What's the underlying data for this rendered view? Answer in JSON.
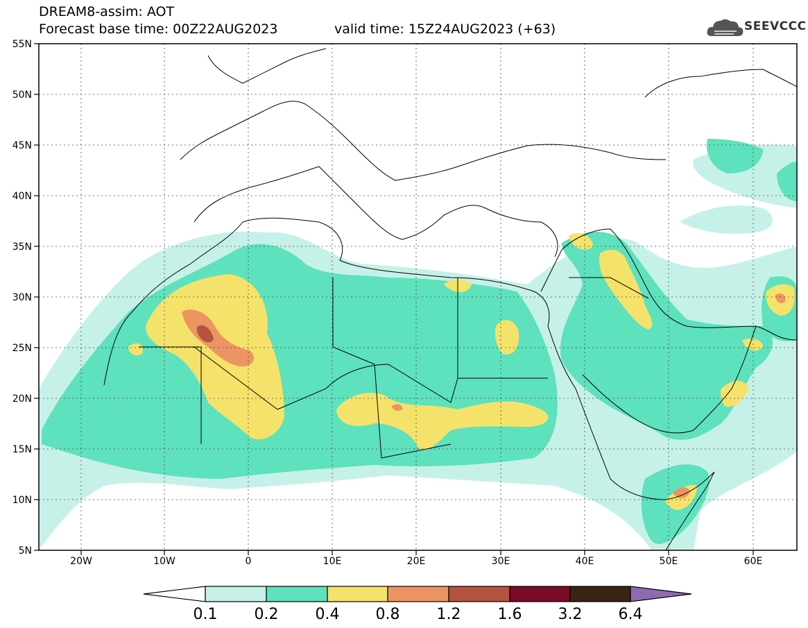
{
  "header": {
    "model_product": "DREAM8-assim: AOT",
    "base_time": "Forecast base time: 00Z22AUG2023",
    "valid_time": "valid time: 15Z24AUG2023 (+63)"
  },
  "logo": {
    "text": "SEEVCCC",
    "icon": "cloud-logo-icon"
  },
  "map": {
    "lon_range": [
      -25,
      65
    ],
    "lat_range": [
      5,
      55
    ],
    "lon_ticks": [
      "20W",
      "10W",
      "0",
      "10E",
      "20E",
      "30E",
      "40E",
      "50E",
      "60E"
    ],
    "lat_ticks": [
      "55N",
      "50N",
      "45N",
      "40N",
      "35N",
      "30N",
      "25N",
      "20N",
      "15N",
      "10N",
      "5N"
    ],
    "grid": "dotted"
  },
  "legend": {
    "labels": [
      "0.1",
      "0.2",
      "0.4",
      "0.8",
      "1.2",
      "1.6",
      "3.2",
      "6.4"
    ],
    "colors": [
      "#ffffff",
      "#c6f1e8",
      "#5ee1bd",
      "#f5e26a",
      "#ec9563",
      "#b6533f",
      "#7a0a28",
      "#3a2414",
      "#8e6bb0"
    ]
  }
}
